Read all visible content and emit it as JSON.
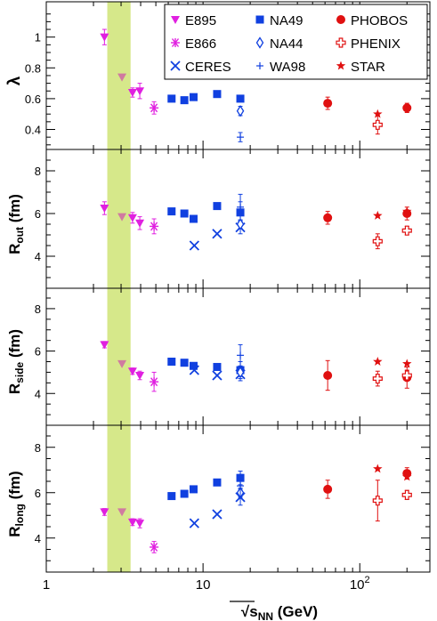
{
  "colors": {
    "magenta": "#e020e0",
    "faded": "#d07aa0",
    "blue": "#1040e0",
    "red": "#e01010",
    "band": "#d6e88a"
  },
  "chart_data": {
    "type": "scatter",
    "x_scale": "log",
    "xlim": [
      1,
      280
    ],
    "xlabel": "√sNN (GeV)",
    "xticks": [
      {
        "value": 1,
        "label": "1"
      },
      {
        "value": 10,
        "label": "10"
      },
      {
        "value": 100,
        "label": "10²"
      }
    ],
    "band": [
      2.45,
      3.45
    ],
    "legend": {
      "placement": "top-right",
      "entries": [
        {
          "label": "E895",
          "series": "E895"
        },
        {
          "label": "NA49",
          "series": "NA49"
        },
        {
          "label": "PHOBOS",
          "series": "PHOBOS"
        },
        {
          "label": "E866",
          "series": "E866"
        },
        {
          "label": "NA44",
          "series": "NA44"
        },
        {
          "label": "PHENIX",
          "series": "PHENIX"
        },
        {
          "label": "CERES",
          "series": "CERES"
        },
        {
          "label": "WA98",
          "series": "WA98"
        },
        {
          "label": "STAR",
          "series": "STAR"
        }
      ]
    },
    "series_style": {
      "E895": {
        "marker": "triangle-down",
        "color": "magenta"
      },
      "E866": {
        "marker": "asterisk",
        "color": "magenta"
      },
      "NA49": {
        "marker": "square",
        "color": "blue"
      },
      "NA44": {
        "marker": "diamond-open",
        "color": "blue"
      },
      "CERES": {
        "marker": "cross",
        "color": "blue"
      },
      "WA98": {
        "marker": "plus",
        "color": "blue"
      },
      "PHOBOS": {
        "marker": "circle",
        "color": "red"
      },
      "PHENIX": {
        "marker": "cross-open",
        "color": "red"
      },
      "STAR": {
        "marker": "star",
        "color": "red"
      }
    },
    "panels": [
      {
        "id": "lambda",
        "ylabel": "λ",
        "ylabel_sub": "",
        "ylim": [
          0.27,
          1.16
        ],
        "yticks": [
          {
            "value": 0.4,
            "label": "0.4"
          },
          {
            "value": 0.6,
            "label": "0.6"
          },
          {
            "value": 0.8,
            "label": "0.8"
          },
          {
            "value": 1.0,
            "label": "1"
          }
        ],
        "series": [
          {
            "name": "E895",
            "points": [
              {
                "x": 2.35,
                "y": 1.0,
                "err": 0.05,
                "faded": false
              },
              {
                "x": 3.04,
                "y": 0.74,
                "err": 0.0,
                "faded": true
              },
              {
                "x": 3.55,
                "y": 0.64,
                "err": 0.03,
                "faded": false
              },
              {
                "x": 3.95,
                "y": 0.65,
                "err": 0.05,
                "faded": false
              }
            ]
          },
          {
            "name": "E866",
            "points": [
              {
                "x": 4.87,
                "y": 0.54,
                "err": 0.04,
                "faded": false
              }
            ]
          },
          {
            "name": "NA49",
            "points": [
              {
                "x": 6.3,
                "y": 0.6,
                "err": 0.0,
                "faded": false
              },
              {
                "x": 7.6,
                "y": 0.59,
                "err": 0.0,
                "faded": false
              },
              {
                "x": 8.7,
                "y": 0.61,
                "err": 0.0,
                "faded": false
              },
              {
                "x": 12.3,
                "y": 0.63,
                "err": 0.0,
                "faded": false
              },
              {
                "x": 17.3,
                "y": 0.6,
                "err": 0.0,
                "faded": false
              }
            ]
          },
          {
            "name": "NA44",
            "points": [
              {
                "x": 17.3,
                "y": 0.52,
                "err": 0.03,
                "faded": false
              }
            ]
          },
          {
            "name": "WA98",
            "points": [
              {
                "x": 17.3,
                "y": 0.35,
                "err": 0.03,
                "faded": false
              }
            ]
          },
          {
            "name": "PHOBOS",
            "points": [
              {
                "x": 62.4,
                "y": 0.57,
                "err": 0.04,
                "faded": false
              },
              {
                "x": 200,
                "y": 0.54,
                "err": 0.03,
                "faded": false
              }
            ]
          },
          {
            "name": "PHENIX",
            "points": [
              {
                "x": 130,
                "y": 0.43,
                "err": 0.06,
                "faded": false
              }
            ]
          },
          {
            "name": "STAR",
            "points": [
              {
                "x": 130,
                "y": 0.5,
                "err": 0.0,
                "faded": false
              }
            ]
          }
        ]
      },
      {
        "id": "rout",
        "ylabel": "R",
        "ylabel_sub": "out",
        "ylabel_unit": "(fm)",
        "ylim": [
          2.5,
          8.5
        ],
        "yticks": [
          {
            "value": 4,
            "label": "4"
          },
          {
            "value": 6,
            "label": "6"
          },
          {
            "value": 8,
            "label": "8"
          }
        ],
        "series": [
          {
            "name": "E895",
            "points": [
              {
                "x": 2.35,
                "y": 6.25,
                "err": 0.3,
                "faded": false
              },
              {
                "x": 3.04,
                "y": 5.85,
                "err": 0.0,
                "faded": true
              },
              {
                "x": 3.55,
                "y": 5.8,
                "err": 0.25,
                "faded": false
              },
              {
                "x": 3.95,
                "y": 5.55,
                "err": 0.3,
                "faded": false
              }
            ]
          },
          {
            "name": "E866",
            "points": [
              {
                "x": 4.87,
                "y": 5.4,
                "err": 0.35,
                "faded": false
              }
            ]
          },
          {
            "name": "NA49",
            "points": [
              {
                "x": 6.3,
                "y": 6.1,
                "err": 0.0,
                "faded": false
              },
              {
                "x": 7.6,
                "y": 6.0,
                "err": 0.0,
                "faded": false
              },
              {
                "x": 8.7,
                "y": 5.75,
                "err": 0.0,
                "faded": false
              },
              {
                "x": 12.3,
                "y": 6.35,
                "err": 0.0,
                "faded": false
              },
              {
                "x": 17.3,
                "y": 6.05,
                "err": 0.5,
                "faded": false
              }
            ]
          },
          {
            "name": "CERES",
            "points": [
              {
                "x": 8.8,
                "y": 4.5,
                "err": 0.0,
                "faded": false
              },
              {
                "x": 12.3,
                "y": 5.05,
                "err": 0.0,
                "faded": false
              },
              {
                "x": 17.3,
                "y": 5.35,
                "err": 0.3,
                "faded": false
              }
            ]
          },
          {
            "name": "NA44",
            "points": [
              {
                "x": 17.3,
                "y": 5.5,
                "err": 0.2,
                "faded": false
              }
            ]
          },
          {
            "name": "WA98",
            "points": [
              {
                "x": 17.3,
                "y": 6.3,
                "err": 0.6,
                "faded": false
              }
            ]
          },
          {
            "name": "PHOBOS",
            "points": [
              {
                "x": 62.4,
                "y": 5.8,
                "err": 0.3,
                "faded": false
              },
              {
                "x": 200,
                "y": 6.0,
                "err": 0.3,
                "faded": false
              }
            ]
          },
          {
            "name": "PHENIX",
            "points": [
              {
                "x": 130,
                "y": 4.7,
                "err": 0.35,
                "faded": false
              },
              {
                "x": 200,
                "y": 5.2,
                "err": 0.2,
                "faded": false
              }
            ]
          },
          {
            "name": "STAR",
            "points": [
              {
                "x": 130,
                "y": 5.9,
                "err": 0.0,
                "faded": false
              },
              {
                "x": 200,
                "y": 6.1,
                "err": 0.0,
                "faded": false
              }
            ]
          }
        ]
      },
      {
        "id": "rside",
        "ylabel": "R",
        "ylabel_sub": "side",
        "ylabel_unit": "(fm)",
        "ylim": [
          2.5,
          8.5
        ],
        "yticks": [
          {
            "value": 4,
            "label": "4"
          },
          {
            "value": 6,
            "label": "6"
          },
          {
            "value": 8,
            "label": "8"
          }
        ],
        "series": [
          {
            "name": "E895",
            "points": [
              {
                "x": 2.35,
                "y": 6.3,
                "err": 0.15,
                "faded": false
              },
              {
                "x": 3.04,
                "y": 5.4,
                "err": 0.0,
                "faded": true
              },
              {
                "x": 3.55,
                "y": 5.05,
                "err": 0.15,
                "faded": false
              },
              {
                "x": 3.95,
                "y": 4.85,
                "err": 0.2,
                "faded": false
              }
            ]
          },
          {
            "name": "E866",
            "points": [
              {
                "x": 4.87,
                "y": 4.55,
                "err": 0.45,
                "faded": false
              }
            ]
          },
          {
            "name": "NA49",
            "points": [
              {
                "x": 6.3,
                "y": 5.5,
                "err": 0.0,
                "faded": false
              },
              {
                "x": 7.6,
                "y": 5.45,
                "err": 0.0,
                "faded": false
              },
              {
                "x": 8.7,
                "y": 5.3,
                "err": 0.0,
                "faded": false
              },
              {
                "x": 12.3,
                "y": 5.25,
                "err": 0.0,
                "faded": false
              },
              {
                "x": 17.3,
                "y": 5.1,
                "err": 0.4,
                "faded": false
              }
            ]
          },
          {
            "name": "CERES",
            "points": [
              {
                "x": 8.8,
                "y": 5.1,
                "err": 0.0,
                "faded": false
              },
              {
                "x": 12.3,
                "y": 4.85,
                "err": 0.0,
                "faded": false
              },
              {
                "x": 17.3,
                "y": 4.9,
                "err": 0.3,
                "faded": false
              }
            ]
          },
          {
            "name": "NA44",
            "points": [
              {
                "x": 17.3,
                "y": 5.0,
                "err": 0.2,
                "faded": false
              }
            ]
          },
          {
            "name": "WA98",
            "points": [
              {
                "x": 17.3,
                "y": 5.8,
                "err": 0.5,
                "faded": false
              }
            ]
          },
          {
            "name": "PHOBOS",
            "points": [
              {
                "x": 62.4,
                "y": 4.85,
                "err": 0.7,
                "faded": false
              },
              {
                "x": 200,
                "y": 4.75,
                "err": 0.5,
                "faded": false
              }
            ]
          },
          {
            "name": "PHENIX",
            "points": [
              {
                "x": 130,
                "y": 4.7,
                "err": 0.35,
                "faded": false
              },
              {
                "x": 200,
                "y": 4.85,
                "err": 0.25,
                "faded": false
              }
            ]
          },
          {
            "name": "STAR",
            "points": [
              {
                "x": 130,
                "y": 5.5,
                "err": 0.0,
                "faded": false
              },
              {
                "x": 200,
                "y": 5.4,
                "err": 0.0,
                "faded": false
              }
            ]
          }
        ]
      },
      {
        "id": "rlong",
        "ylabel": "R",
        "ylabel_sub": "long",
        "ylabel_unit": "(fm)",
        "ylim": [
          2.5,
          8.5
        ],
        "yticks": [
          {
            "value": 4,
            "label": "4"
          },
          {
            "value": 6,
            "label": "6"
          },
          {
            "value": 8,
            "label": "8"
          }
        ],
        "series": [
          {
            "name": "E895",
            "points": [
              {
                "x": 2.35,
                "y": 5.15,
                "err": 0.15,
                "faded": false
              },
              {
                "x": 3.04,
                "y": 5.15,
                "err": 0.0,
                "faded": true
              },
              {
                "x": 3.55,
                "y": 4.7,
                "err": 0.15,
                "faded": false
              },
              {
                "x": 3.95,
                "y": 4.65,
                "err": 0.2,
                "faded": false
              }
            ]
          },
          {
            "name": "E866",
            "points": [
              {
                "x": 4.87,
                "y": 3.6,
                "err": 0.25,
                "faded": false
              }
            ]
          },
          {
            "name": "NA49",
            "points": [
              {
                "x": 6.3,
                "y": 5.85,
                "err": 0.0,
                "faded": false
              },
              {
                "x": 7.6,
                "y": 5.95,
                "err": 0.0,
                "faded": false
              },
              {
                "x": 8.7,
                "y": 6.15,
                "err": 0.0,
                "faded": false
              },
              {
                "x": 12.3,
                "y": 6.45,
                "err": 0.0,
                "faded": false
              },
              {
                "x": 17.3,
                "y": 6.65,
                "err": 0.3,
                "faded": false
              }
            ]
          },
          {
            "name": "CERES",
            "points": [
              {
                "x": 8.8,
                "y": 4.65,
                "err": 0.0,
                "faded": false
              },
              {
                "x": 12.3,
                "y": 5.05,
                "err": 0.0,
                "faded": false
              },
              {
                "x": 17.3,
                "y": 5.8,
                "err": 0.35,
                "faded": false
              }
            ]
          },
          {
            "name": "NA44",
            "points": [
              {
                "x": 17.3,
                "y": 6.0,
                "err": 0.2,
                "faded": false
              }
            ]
          },
          {
            "name": "WA98",
            "points": [
              {
                "x": 17.3,
                "y": 6.3,
                "err": 0.5,
                "faded": false
              }
            ]
          },
          {
            "name": "PHOBOS",
            "points": [
              {
                "x": 62.4,
                "y": 6.15,
                "err": 0.4,
                "faded": false
              },
              {
                "x": 200,
                "y": 6.85,
                "err": 0.25,
                "faded": false
              }
            ]
          },
          {
            "name": "PHENIX",
            "points": [
              {
                "x": 130,
                "y": 5.65,
                "err": 0.9,
                "faded": false
              },
              {
                "x": 200,
                "y": 5.9,
                "err": 0.2,
                "faded": false
              }
            ]
          },
          {
            "name": "STAR",
            "points": [
              {
                "x": 130,
                "y": 7.05,
                "err": 0.0,
                "faded": false
              },
              {
                "x": 200,
                "y": 6.7,
                "err": 0.0,
                "faded": false
              }
            ]
          }
        ]
      }
    ]
  }
}
